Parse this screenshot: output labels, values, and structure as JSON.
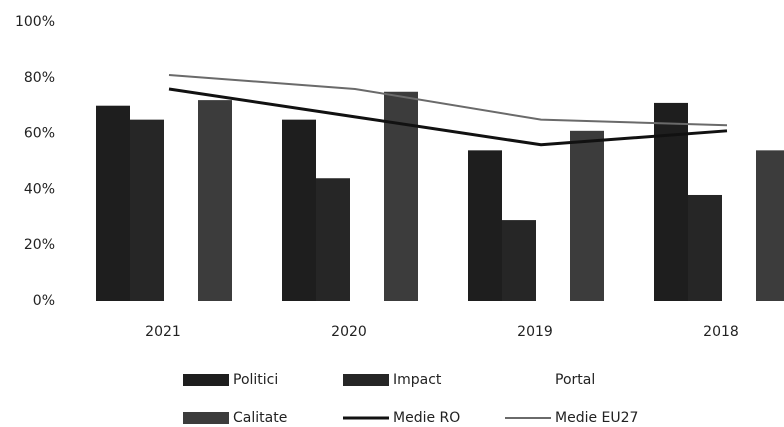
{
  "chart_data": {
    "type": "bar",
    "categories": [
      "2021",
      "2020",
      "2019",
      "2018"
    ],
    "series": [
      {
        "name": "Politici",
        "color": "#1e1e1e",
        "values": [
          70,
          65,
          54,
          71
        ]
      },
      {
        "name": "Impact",
        "color": "#262626",
        "values": [
          65,
          44,
          29,
          38
        ]
      },
      {
        "name": "Portal",
        "color": "#ffffff",
        "values": [
          null,
          null,
          null,
          null
        ]
      },
      {
        "name": "Calitate",
        "color": "#3c3c3c",
        "values": [
          72,
          75,
          61,
          54
        ]
      },
      {
        "name": "Medie RO",
        "type": "line",
        "color": "#111111",
        "values": [
          76,
          66,
          56,
          61
        ]
      },
      {
        "name": "Medie EU27",
        "type": "line",
        "color": "#6a6a6a",
        "values": [
          81,
          76,
          65,
          63
        ]
      }
    ],
    "ylim": [
      0,
      100
    ],
    "yticks": [
      {
        "value": 0,
        "label": "0%"
      },
      {
        "value": 20,
        "label": "20%"
      },
      {
        "value": 40,
        "label": "40%"
      },
      {
        "value": 60,
        "label": "60%"
      },
      {
        "value": 80,
        "label": "80%"
      },
      {
        "value": 100,
        "label": "100%"
      }
    ],
    "grid": false,
    "legend": "bottom"
  }
}
